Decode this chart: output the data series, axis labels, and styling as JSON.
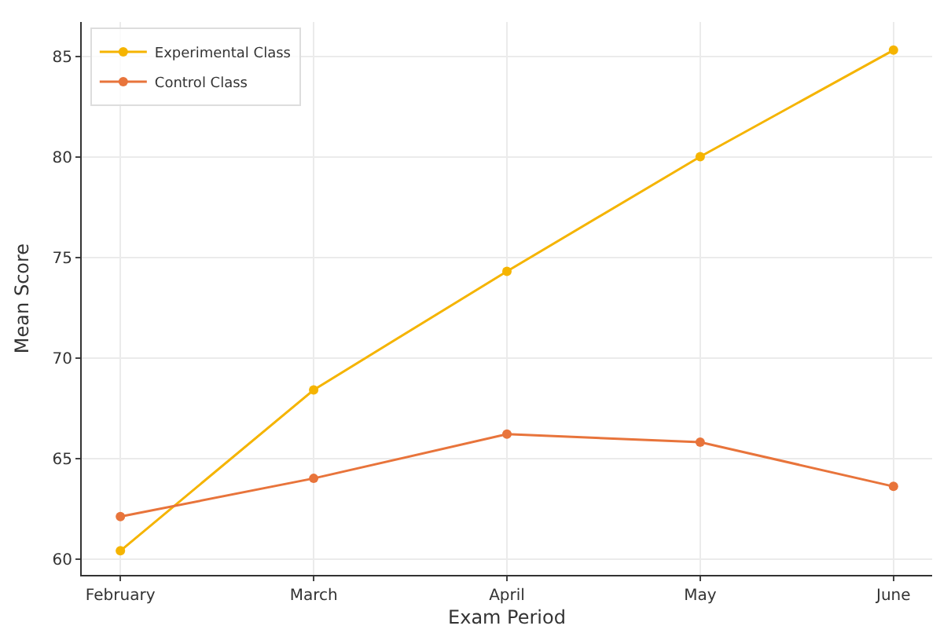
{
  "chart_data": {
    "type": "line",
    "xlabel": "Exam Period",
    "ylabel": "Mean Score",
    "categories": [
      "February",
      "March",
      "April",
      "May",
      "June"
    ],
    "series": [
      {
        "name": "Experimental Class",
        "color": "#f5b400",
        "values": [
          60.4,
          68.4,
          74.3,
          80.0,
          85.3
        ]
      },
      {
        "name": "Control Class",
        "color": "#e8743b",
        "values": [
          62.1,
          64.0,
          66.2,
          65.8,
          63.6
        ]
      }
    ],
    "ylim": [
      59.2,
      86.7
    ],
    "yticks": [
      60,
      65,
      70,
      75,
      80,
      85
    ],
    "grid": true,
    "legend": "top left",
    "marker": "circle",
    "line_style": "solid"
  }
}
